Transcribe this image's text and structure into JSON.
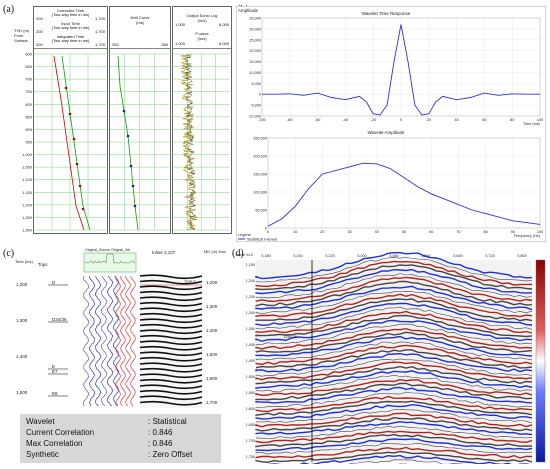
{
  "panels": {
    "a": "(a)",
    "b": "(b)",
    "c": "(c)",
    "d": "(d)"
  },
  "panel_a": {
    "tvd_label": "TVD (m) From Surface",
    "col1": {
      "h1": "Corrected Time",
      "h1b": "(Two-way time in ms)",
      "h1_min": "200",
      "h1_max": "1,700",
      "h2": "Input Time",
      "h2b": "(Two-way time in ms)",
      "h2_min": "200",
      "h2_max": "1,700",
      "h3": "Integrated Time",
      "h3b": "(Two-way time in ms)",
      "h3_min": "200",
      "h3_max": "1,700"
    },
    "col2": {
      "h1": "Drift Curve",
      "h1b": "(ms)",
      "min": "250",
      "max": "280"
    },
    "col3": {
      "h1": "Output Sonic Log",
      "h1b": "(m/s)",
      "min1": "1,000",
      "max1": "6,000",
      "h2": "P-wave",
      "h2b": "(m/s)",
      "min2": "1,000",
      "max2": "6,000"
    },
    "depths": [
      "600",
      "650",
      "700",
      "750",
      "800",
      "850",
      "900",
      "950",
      "1,000",
      "1,050",
      "1,100",
      "1,150",
      "1,200",
      "1,250",
      "1,300"
    ]
  },
  "panel_b": {
    "top_title": "Wavelet Time Response",
    "top_ylabel": "Amplitude",
    "top_xlabel": "Time (ms)",
    "top_yticks": [
      "35,000",
      "30,000",
      "25,000",
      "20,000",
      "15,000",
      "10,000",
      "5,000",
      "0",
      "-5,000",
      "-10,000"
    ],
    "top_xticks": [
      "-100",
      "-80",
      "-60",
      "-40",
      "-20",
      "0",
      "20",
      "40",
      "60",
      "80",
      "100"
    ],
    "bottom_title": "Wavelet Amplitude",
    "bottom_yticks": [
      "250,000",
      "200,000",
      "150,000",
      "100,000",
      "50,000",
      "0"
    ],
    "bottom_xticks": [
      "0",
      "10",
      "20",
      "30",
      "40",
      "50",
      "60",
      "70",
      "80",
      "90",
      "100"
    ],
    "bottom_xlabel": "Frequency (Hz)",
    "legend": "Legend",
    "legend_item": "Statistical Interval"
  },
  "panel_c": {
    "time_label": "Time (ms)",
    "tops_label": "Tops",
    "orig_label": "Original_Source   Original_Sei",
    "inline_label": "Inline 3,107",
    "md_label": "MD (m) from KB",
    "time_ticks": [
      "1,200",
      "1,300",
      "1,400",
      "1,500"
    ],
    "md_ticks": [
      "1,200",
      "1,300",
      "1,400",
      "1,500",
      "1,600",
      "1,700"
    ],
    "tops": [
      "D",
      "D34/36",
      "E",
      "E7",
      "E8"
    ],
    "top_tag": "TOP D"
  },
  "stats": {
    "rows": [
      {
        "k": "Wavelet",
        "v": ": Statistical"
      },
      {
        "k": "Current Correlation",
        "v": ": 0.846"
      },
      {
        "k": "Max Correlation",
        "v": ": 0.846"
      },
      {
        "k": "Synthetic",
        "v": ": Zero Offset"
      }
    ]
  },
  "panel_d": {
    "axis_label": "Inline XL3",
    "xticks": [
      "3,180",
      "3,240",
      "3,220",
      "3,000",
      "3,080",
      "3,560",
      "3,640",
      "3,720",
      "3,800"
    ],
    "yticks": [
      "1,150",
      "1,200",
      "1,250",
      "1,300",
      "1,350",
      "1,400",
      "1,450",
      "1,500",
      "1,550",
      "1,600",
      "1,650",
      "1,700",
      "1,750"
    ],
    "label_d": "D34/36"
  },
  "chart_data": [
    {
      "type": "line",
      "title": "Wavelet Time Response",
      "ylabel": "Amplitude",
      "xlabel": "Time (ms)",
      "xlim": [
        -100,
        100
      ],
      "ylim": [
        -10000,
        35000
      ],
      "x": [
        -100,
        -90,
        -80,
        -70,
        -60,
        -50,
        -40,
        -30,
        -25,
        -20,
        -15,
        -10,
        -5,
        0,
        5,
        10,
        15,
        20,
        25,
        30,
        40,
        50,
        60,
        70,
        80,
        90,
        100
      ],
      "y": [
        0,
        0,
        200,
        -500,
        500,
        -1500,
        -2500,
        -1000,
        -3500,
        -9000,
        -9500,
        -5000,
        15000,
        32000,
        15000,
        -5000,
        -9500,
        -9000,
        -3500,
        -1000,
        -2500,
        -1500,
        500,
        -500,
        200,
        0,
        0
      ]
    },
    {
      "type": "line",
      "title": "Wavelet Amplitude",
      "xlabel": "Frequency (Hz)",
      "xlim": [
        0,
        100
      ],
      "ylim": [
        0,
        250000
      ],
      "x": [
        0,
        5,
        10,
        15,
        20,
        25,
        30,
        35,
        40,
        45,
        50,
        55,
        60,
        65,
        70,
        75,
        80,
        85,
        90,
        95,
        100
      ],
      "y": [
        5000,
        25000,
        60000,
        110000,
        150000,
        160000,
        170000,
        180000,
        178000,
        165000,
        140000,
        115000,
        95000,
        80000,
        65000,
        50000,
        40000,
        30000,
        20000,
        15000,
        10000
      ]
    }
  ]
}
